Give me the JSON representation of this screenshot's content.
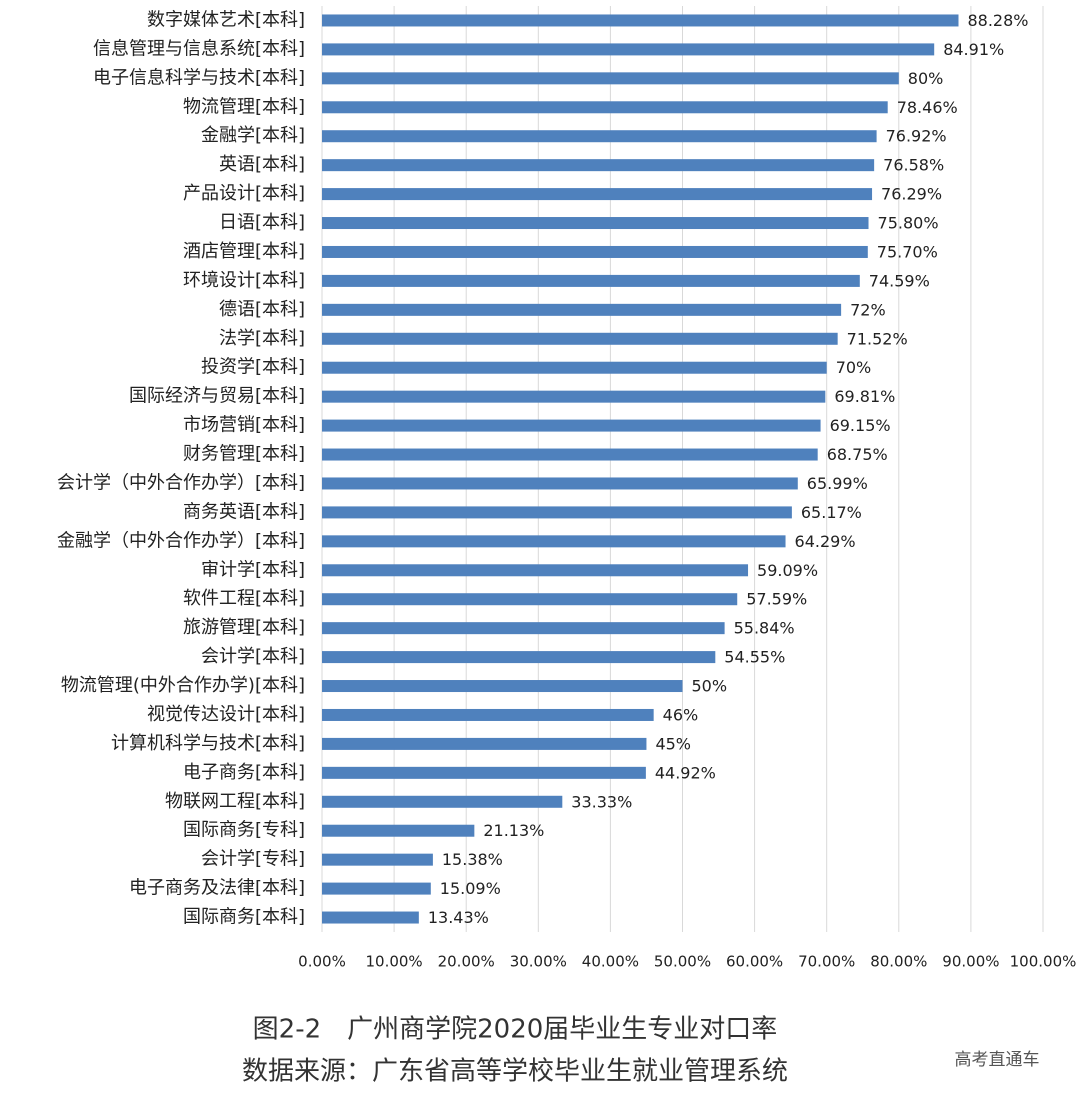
{
  "chart_data": {
    "type": "barh",
    "title": "图2-2　广州商学院2020届毕业生专业对口率",
    "subtitle": "数据来源：广东省高等学校毕业生就业管理系统",
    "categories": [
      "数字媒体艺术[本科]",
      "信息管理与信息系统[本科]",
      "电子信息科学与技术[本科]",
      "物流管理[本科]",
      "金融学[本科]",
      "英语[本科]",
      "产品设计[本科]",
      "日语[本科]",
      "酒店管理[本科]",
      "环境设计[本科]",
      "德语[本科]",
      "法学[本科]",
      "投资学[本科]",
      "国际经济与贸易[本科]",
      "市场营销[本科]",
      "财务管理[本科]",
      "会计学（中外合作办学）[本科]",
      "商务英语[本科]",
      "金融学（中外合作办学）[本科]",
      "审计学[本科]",
      "软件工程[本科]",
      "旅游管理[本科]",
      "会计学[本科]",
      "物流管理(中外合作办学)[本科]",
      "视觉传达设计[本科]",
      "计算机科学与技术[本科]",
      "电子商务[本科]",
      "物联网工程[本科]",
      "国际商务[专科]",
      "会计学[专科]",
      "电子商务及法律[本科]",
      "国际商务[本科]"
    ],
    "values": [
      88.28,
      84.91,
      80,
      78.46,
      76.92,
      76.58,
      76.29,
      75.8,
      75.7,
      74.59,
      72,
      71.52,
      70,
      69.81,
      69.15,
      68.75,
      65.99,
      65.17,
      64.29,
      59.09,
      57.59,
      55.84,
      54.55,
      50,
      46,
      45,
      44.92,
      33.33,
      21.13,
      15.38,
      15.09,
      13.43
    ],
    "value_labels": [
      "88.28%",
      "84.91%",
      "80%",
      "78.46%",
      "76.92%",
      "76.58%",
      "76.29%",
      "75.80%",
      "75.70%",
      "74.59%",
      "72%",
      "71.52%",
      "70%",
      "69.81%",
      "69.15%",
      "68.75%",
      "65.99%",
      "65.17%",
      "64.29%",
      "59.09%",
      "57.59%",
      "55.84%",
      "54.55%",
      "50%",
      "46%",
      "45%",
      "44.92%",
      "33.33%",
      "21.13%",
      "15.38%",
      "15.09%",
      "13.43%"
    ],
    "color": "#4f81bd",
    "xlim": [
      0,
      100
    ],
    "xticks": [
      {
        "value": 0,
        "label": "0.00%"
      },
      {
        "value": 10,
        "label": "10.00%"
      },
      {
        "value": 20,
        "label": "20.00%"
      },
      {
        "value": 30,
        "label": "30.00%"
      },
      {
        "value": 40,
        "label": "40.00%"
      },
      {
        "value": 50,
        "label": "50.00%"
      },
      {
        "value": 60,
        "label": "60.00%"
      },
      {
        "value": 70,
        "label": "70.00%"
      },
      {
        "value": 80,
        "label": "80.00%"
      },
      {
        "value": 90,
        "label": "90.00%"
      },
      {
        "value": 100,
        "label": "100.00%"
      }
    ],
    "grid": true
  },
  "watermark": "高考直通车"
}
